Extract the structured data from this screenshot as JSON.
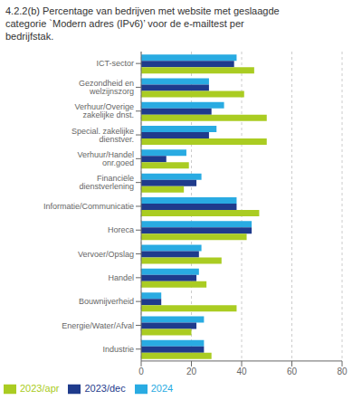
{
  "chart_data": {
    "type": "bar",
    "orientation": "horizontal",
    "title": "4.2.2(b) Percentage van bedrijven met website met geslaagde\ncategorie `Modern adres (IPv6)’ voor de e-mailtest per\nbedrijfstak.",
    "categories": [
      "ICT-sector",
      "Gezondheid en welzijnszorg",
      "Verhuur/Overige zakelijke dnst.",
      "Special. zakelijke dienstver.",
      "Verhuur/Handel onr.goed",
      "Financiële dienstverlening",
      "Informatie/Communicatie",
      "Horeca",
      "Vervoer/Opslag",
      "Handel",
      "Bouwnijverheid",
      "Energie/Water/Afval",
      "Industrie"
    ],
    "series": [
      {
        "name": "2024",
        "color": "#29ABE2",
        "values": [
          38,
          27,
          33,
          30,
          18,
          24,
          38,
          44,
          24,
          23,
          8,
          25,
          25
        ]
      },
      {
        "name": "2023/dec",
        "color": "#1F3B8C",
        "values": [
          37,
          27,
          28,
          27,
          10,
          22,
          38,
          44,
          23,
          22,
          8,
          22,
          25
        ]
      },
      {
        "name": "2023/apr",
        "color": "#AACC22",
        "values": [
          45,
          41,
          50,
          50,
          19,
          17,
          47,
          42,
          32,
          26,
          38,
          20,
          28
        ]
      }
    ],
    "xlim": [
      0,
      80
    ],
    "xticks": [
      0,
      20,
      40,
      60,
      80
    ],
    "grid": true,
    "legend": "lower left"
  }
}
